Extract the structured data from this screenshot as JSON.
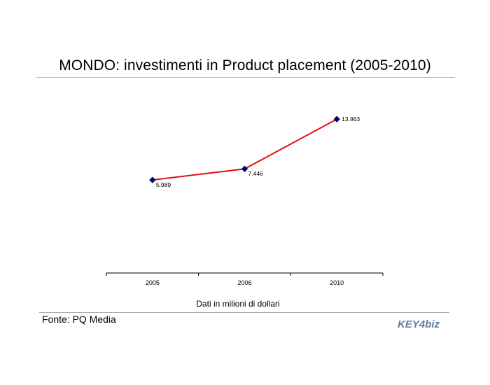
{
  "title": "MONDO: investimenti in Product placement (2005-2010)",
  "note": "Dati in milioni di dollari",
  "source": "Fonte: PQ Media",
  "logo": {
    "text_a": "KEY",
    "text_b": "4",
    "text_c": "biz",
    "color": "#5f7d9e"
  },
  "chart_data": {
    "type": "line",
    "categories": [
      "2005",
      "2006",
      "2010"
    ],
    "values": [
      5989,
      7446,
      13963
    ],
    "data_labels": [
      "5.989",
      "7.446",
      "13.963"
    ],
    "title": "MONDO: investimenti in Product placement (2005-2010)",
    "xlabel": "",
    "ylabel": "",
    "grid": false,
    "line_color": "#e01010",
    "marker_color": "#000080"
  }
}
